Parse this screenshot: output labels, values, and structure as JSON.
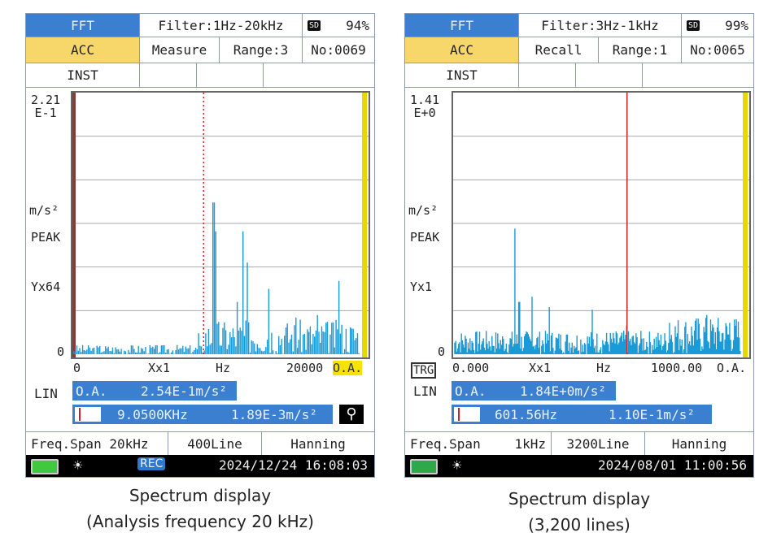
{
  "panels": [
    {
      "mode": "FFT",
      "filter": "Filter:1Hz-20kHz",
      "sd_label": "SD",
      "sd_percent": "94%",
      "quantity": "ACC",
      "state": "Measure",
      "range": "Range:3",
      "number": "No:0069",
      "inst": "INST",
      "y_top": [
        "2.21",
        "E-1"
      ],
      "y_unit": "m/s²",
      "y_type": "PEAK",
      "y_zoom": "Yx64",
      "y_zero": "0",
      "x_start": "0",
      "x_zoom": "Xx1",
      "x_unit": "Hz",
      "x_end": "20000",
      "oa_tag": "O.A.",
      "trg": "",
      "lin": "LIN",
      "oa_label": "O.A.",
      "oa_value": "2.54E-1m/s²",
      "cursor_freq": "9.0500KHz",
      "cursor_value": "1.89E-3m/s²",
      "freq_span": "Freq.Span 20kHz",
      "lines": "400Line",
      "window": "Hanning",
      "rec": "REC",
      "datetime": "2024/12/24 16:08:03",
      "battery_color": "#3ec93e",
      "x_max_hz": 20000,
      "cursor_hz": 9050,
      "cursor_style": "dotted",
      "zoom_icon": "magnifier-icon",
      "peaks": [
        [
          9750,
          0.58
        ],
        [
          9850,
          0.47
        ],
        [
          11760,
          0.47
        ],
        [
          12100,
          0.35
        ],
        [
          11400,
          0.2
        ],
        [
          13600,
          0.25
        ],
        [
          18500,
          0.28
        ],
        [
          17000,
          0.15
        ],
        [
          15500,
          0.14
        ],
        [
          8700,
          0.08
        ]
      ],
      "noise": 0.06,
      "seed": 3
    },
    {
      "mode": "FFT",
      "filter": "Filter:3Hz-1kHz",
      "sd_label": "SD",
      "sd_percent": "99%",
      "quantity": "ACC",
      "state": "Recall",
      "range": "Range:1",
      "number": "No:0065",
      "inst": "INST",
      "y_top": [
        "1.41",
        "E+0"
      ],
      "y_unit": "m/s²",
      "y_type": "PEAK",
      "y_zoom": "Yx1",
      "y_zero": "0",
      "x_start": "0.000",
      "x_zoom": "Xx1",
      "x_unit": "Hz",
      "x_end": "1000.00",
      "oa_tag": "O.A.",
      "trg": "TRG",
      "lin": "LIN",
      "oa_label": "O.A.",
      "oa_value": "1.84E+0m/s²",
      "cursor_freq": "601.56Hz",
      "cursor_value": "1.10E-1m/s²",
      "freq_span": "Freq.Span",
      "freq_span_value": "1kHz",
      "lines": "3200Line",
      "window": "Hanning",
      "rec": "",
      "datetime": "2024/08/01 11:00:56",
      "battery_color": "#2ea84a",
      "x_max_hz": 1000,
      "cursor_hz": 601.56,
      "cursor_style": "solid",
      "peaks": [
        [
          211,
          0.48
        ],
        [
          225,
          0.2
        ],
        [
          270,
          0.22
        ],
        [
          330,
          0.18
        ],
        [
          480,
          0.17
        ],
        [
          600,
          0.11
        ],
        [
          750,
          0.12
        ],
        [
          880,
          0.15
        ],
        [
          960,
          0.12
        ]
      ],
      "noise": 0.09,
      "seed": 7
    }
  ],
  "captions": [
    [
      "Spectrum display",
      "(Analysis frequency 20 kHz)"
    ],
    [
      "Spectrum display",
      "(3,200 lines)"
    ]
  ],
  "colors": {
    "header_blue": "#3b7fd0",
    "acc_yellow": "#f7d66a",
    "trace": "#1a9ad6",
    "cursor": "#d02020",
    "oa_marker": "#e8d800"
  }
}
